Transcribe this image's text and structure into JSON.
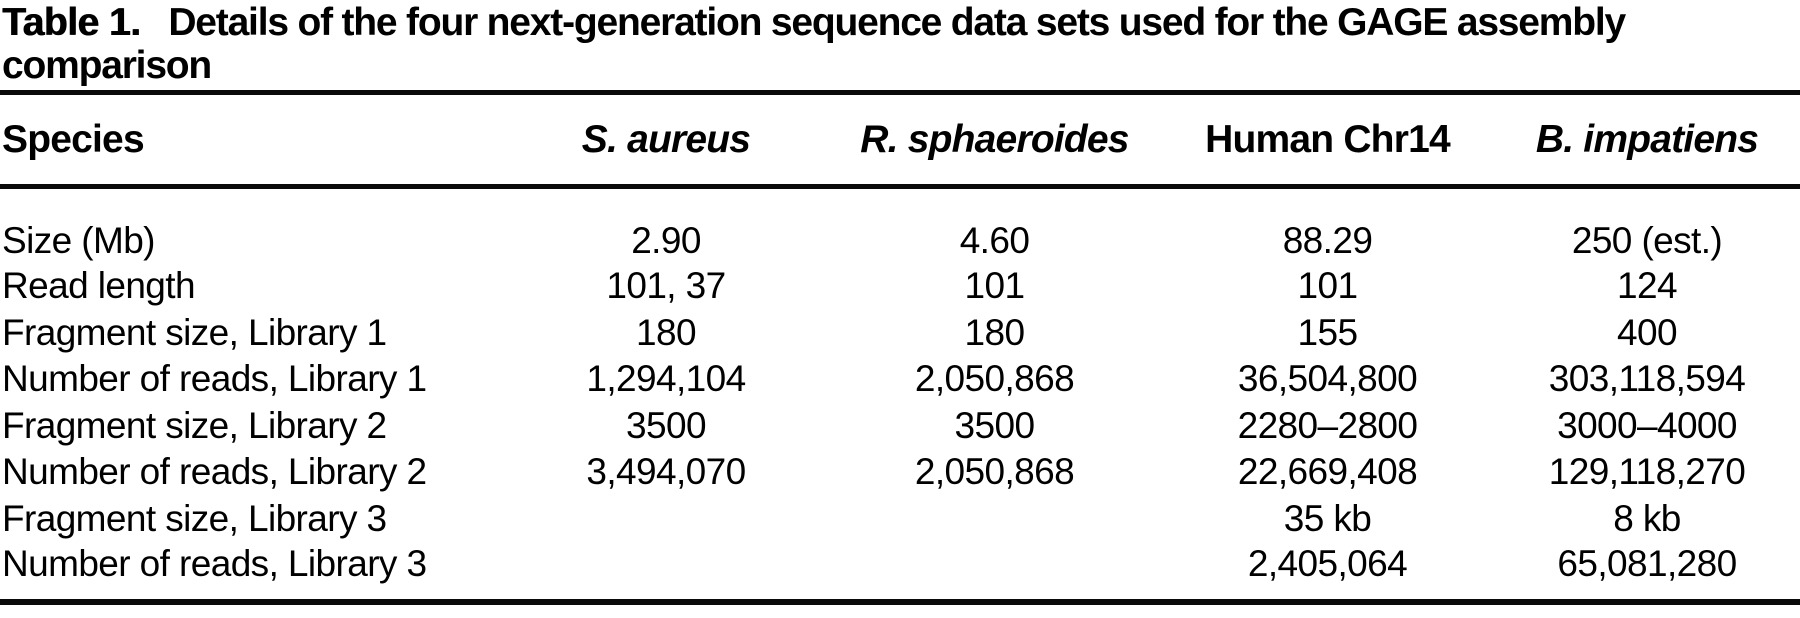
{
  "caption": {
    "label": "Table 1.",
    "text": "Details of the four next-generation sequence data sets used for the GAGE assembly comparison"
  },
  "table": {
    "header": {
      "species": "Species",
      "columns": [
        "S. aureus",
        "R. sphaeroides",
        "Human Chr14",
        "B. impatiens"
      ]
    },
    "rows": [
      {
        "label": "Size (Mb)",
        "values": [
          "2.90",
          "4.60",
          "88.29",
          "250 (est.)"
        ]
      },
      {
        "label": "Read length",
        "values": [
          "101, 37",
          "101",
          "101",
          "124"
        ]
      },
      {
        "label": "Fragment size, Library 1",
        "values": [
          "180",
          "180",
          "155",
          "400"
        ]
      },
      {
        "label": "Number of reads, Library 1",
        "values": [
          "1,294,104",
          "2,050,868",
          "36,504,800",
          "303,118,594"
        ]
      },
      {
        "label": "Fragment size, Library 2",
        "values": [
          "3500",
          "3500",
          "2280–2800",
          "3000–4000"
        ]
      },
      {
        "label": "Number of reads, Library 2",
        "values": [
          "3,494,070",
          "2,050,868",
          "22,669,408",
          "129,118,270"
        ]
      },
      {
        "label": "Fragment size, Library 3",
        "values": [
          "",
          "",
          "35 kb",
          "8 kb"
        ]
      },
      {
        "label": "Number of reads, Library 3",
        "values": [
          "",
          "",
          "2,405,064",
          "65,081,280"
        ]
      }
    ]
  },
  "colors": {
    "text": "#000000",
    "background": "#ffffff",
    "rule": "#0a0a0a"
  }
}
